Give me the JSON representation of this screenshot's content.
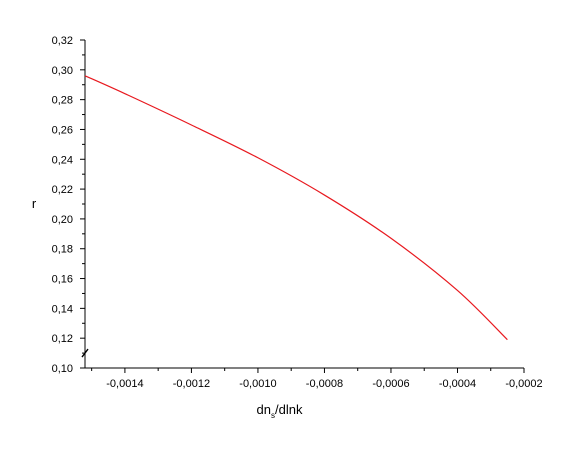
{
  "chart_data": {
    "type": "line",
    "title": "",
    "xlabel": "dn",
    "xlabel_subscript": "s",
    "xlabel_suffix": "/dlnk",
    "ylabel": "r",
    "xlim": [
      -0.00152,
      -0.0002
    ],
    "ylim": [
      0.1,
      0.32
    ],
    "x_ticks": [
      -0.0014,
      -0.0012,
      -0.001,
      -0.0008,
      -0.0006,
      -0.0004,
      -0.0002
    ],
    "x_tick_labels": [
      "-0,0014",
      "-0,0012",
      "-0,0010",
      "-0,0008",
      "-0,0006",
      "-0,0004",
      "-0,0002"
    ],
    "y_ticks": [
      0.1,
      0.12,
      0.14,
      0.16,
      0.18,
      0.2,
      0.22,
      0.24,
      0.26,
      0.28,
      0.3,
      0.32
    ],
    "y_tick_labels": [
      "0,10",
      "0,12",
      "0,14",
      "0,16",
      "0,18",
      "0,20",
      "0,22",
      "0,24",
      "0,26",
      "0,28",
      "0,30",
      "0,32"
    ],
    "grid": false,
    "series": [
      {
        "color": "#e8191f",
        "x": [
          -0.00152,
          -0.0014,
          -0.0012,
          -0.001,
          -0.0008,
          -0.0006,
          -0.0004,
          -0.00025
        ],
        "y": [
          0.296,
          0.284,
          0.263,
          0.241,
          0.216,
          0.187,
          0.152,
          0.119
        ]
      }
    ]
  }
}
